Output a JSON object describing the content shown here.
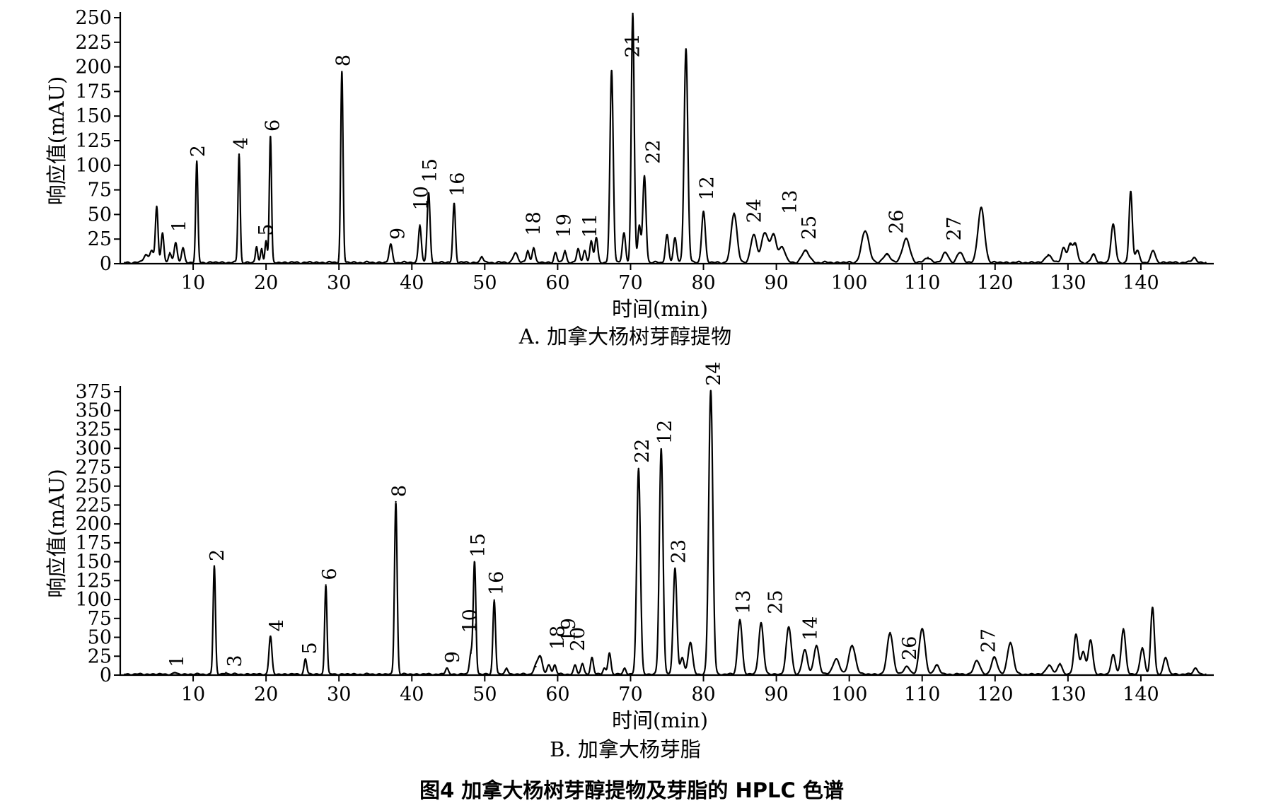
{
  "figure_caption": "图4   加拿大杨树芽醇提物及芽脂的 HPLC 色谱",
  "chart_data": [
    {
      "type": "line",
      "panel": "A",
      "caption": "A. 加拿大杨树芽醇提物",
      "xlabel": "时间(min)",
      "ylabel": "响应值(mAU)",
      "xlim": [
        0,
        150
      ],
      "ylim": [
        0,
        250
      ],
      "xticks": [
        10,
        20,
        30,
        40,
        50,
        60,
        70,
        80,
        90,
        100,
        110,
        120,
        130,
        140
      ],
      "yticks": [
        0,
        25,
        50,
        75,
        100,
        125,
        150,
        175,
        200,
        225,
        250
      ],
      "grid": false,
      "peaks": [
        {
          "t": 3.5,
          "h": 8,
          "w": 0.3
        },
        {
          "t": 4.3,
          "h": 12,
          "w": 0.25
        },
        {
          "t": 5.0,
          "h": 57,
          "w": 0.18
        },
        {
          "t": 5.8,
          "h": 30,
          "w": 0.18
        },
        {
          "t": 6.8,
          "h": 10,
          "w": 0.2
        },
        {
          "t": 7.6,
          "h": 20,
          "w": 0.2
        },
        {
          "t": 8.6,
          "h": 15,
          "w": 0.2
        },
        {
          "t": 10.5,
          "h": 102,
          "w": 0.15
        },
        {
          "t": 16.3,
          "h": 110,
          "w": 0.15
        },
        {
          "t": 18.7,
          "h": 16,
          "w": 0.15
        },
        {
          "t": 19.4,
          "h": 14,
          "w": 0.15
        },
        {
          "t": 20.0,
          "h": 22,
          "w": 0.15
        },
        {
          "t": 20.6,
          "h": 128,
          "w": 0.15
        },
        {
          "t": 30.4,
          "h": 194,
          "w": 0.16
        },
        {
          "t": 37.1,
          "h": 18,
          "w": 0.22
        },
        {
          "t": 41.1,
          "h": 38,
          "w": 0.2
        },
        {
          "t": 42.3,
          "h": 70,
          "w": 0.2
        },
        {
          "t": 45.8,
          "h": 60,
          "w": 0.18
        },
        {
          "t": 49.6,
          "h": 6,
          "w": 0.2
        },
        {
          "t": 54.2,
          "h": 10,
          "w": 0.3
        },
        {
          "t": 55.9,
          "h": 12,
          "w": 0.2
        },
        {
          "t": 56.7,
          "h": 15,
          "w": 0.2
        },
        {
          "t": 59.7,
          "h": 10,
          "w": 0.2
        },
        {
          "t": 61.0,
          "h": 12,
          "w": 0.2
        },
        {
          "t": 62.8,
          "h": 14,
          "w": 0.2
        },
        {
          "t": 63.7,
          "h": 12,
          "w": 0.2
        },
        {
          "t": 64.6,
          "h": 22,
          "w": 0.2
        },
        {
          "t": 65.3,
          "h": 25,
          "w": 0.2
        },
        {
          "t": 67.4,
          "h": 195,
          "w": 0.22
        },
        {
          "t": 69.1,
          "h": 30,
          "w": 0.22
        },
        {
          "t": 70.3,
          "h": 253,
          "w": 0.2
        },
        {
          "t": 71.2,
          "h": 38,
          "w": 0.2
        },
        {
          "t": 71.9,
          "h": 88,
          "w": 0.22
        },
        {
          "t": 75.0,
          "h": 28,
          "w": 0.22
        },
        {
          "t": 76.1,
          "h": 25,
          "w": 0.22
        },
        {
          "t": 77.6,
          "h": 217,
          "w": 0.25
        },
        {
          "t": 80.0,
          "h": 52,
          "w": 0.25
        },
        {
          "t": 84.2,
          "h": 50,
          "w": 0.4
        },
        {
          "t": 86.9,
          "h": 28,
          "w": 0.4
        },
        {
          "t": 88.4,
          "h": 30,
          "w": 0.45
        },
        {
          "t": 89.6,
          "h": 28,
          "w": 0.4
        },
        {
          "t": 90.8,
          "h": 16,
          "w": 0.4
        },
        {
          "t": 94.0,
          "h": 12,
          "w": 0.5
        },
        {
          "t": 102.2,
          "h": 32,
          "w": 0.5
        },
        {
          "t": 105.2,
          "h": 8,
          "w": 0.5
        },
        {
          "t": 107.8,
          "h": 24,
          "w": 0.5
        },
        {
          "t": 110.8,
          "h": 5,
          "w": 0.4
        },
        {
          "t": 113.2,
          "h": 10,
          "w": 0.4
        },
        {
          "t": 115.2,
          "h": 10,
          "w": 0.4
        },
        {
          "t": 118.1,
          "h": 55,
          "w": 0.45
        },
        {
          "t": 127.3,
          "h": 8,
          "w": 0.4
        },
        {
          "t": 129.4,
          "h": 15,
          "w": 0.3
        },
        {
          "t": 130.3,
          "h": 18,
          "w": 0.3
        },
        {
          "t": 131.0,
          "h": 18,
          "w": 0.3
        },
        {
          "t": 133.5,
          "h": 8,
          "w": 0.3
        },
        {
          "t": 136.2,
          "h": 38,
          "w": 0.3
        },
        {
          "t": 138.6,
          "h": 72,
          "w": 0.22
        },
        {
          "t": 139.5,
          "h": 12,
          "w": 0.3
        },
        {
          "t": 141.7,
          "h": 12,
          "w": 0.3
        },
        {
          "t": 147.3,
          "h": 5,
          "w": 0.3
        }
      ],
      "peak_labels": [
        {
          "label": "1",
          "t": 8.0,
          "y": 28
        },
        {
          "label": "2",
          "t": 10.6,
          "y": 104
        },
        {
          "label": "4",
          "t": 16.5,
          "y": 112
        },
        {
          "label": "5",
          "t": 19.9,
          "y": 24
        },
        {
          "label": "6",
          "t": 20.8,
          "y": 130
        },
        {
          "label": "8",
          "t": 30.5,
          "y": 196
        },
        {
          "label": "9",
          "t": 38.0,
          "y": 20
        },
        {
          "label": "10",
          "t": 41.2,
          "y": 50
        },
        {
          "label": "15",
          "t": 42.4,
          "y": 78
        },
        {
          "label": "16",
          "t": 46.2,
          "y": 64
        },
        {
          "label": "18",
          "t": 56.6,
          "y": 24
        },
        {
          "label": "19",
          "t": 60.8,
          "y": 22
        },
        {
          "label": "11",
          "t": 64.4,
          "y": 22
        },
        {
          "label": "21",
          "t": 70.2,
          "y": 205
        },
        {
          "label": "22",
          "t": 73.0,
          "y": 97
        },
        {
          "label": "12",
          "t": 80.4,
          "y": 60
        },
        {
          "label": "24",
          "t": 86.9,
          "y": 37
        },
        {
          "label": "13",
          "t": 91.8,
          "y": 46
        },
        {
          "label": "25",
          "t": 94.4,
          "y": 20
        },
        {
          "label": "26",
          "t": 106.4,
          "y": 26
        },
        {
          "label": "27",
          "t": 114.3,
          "y": 19
        }
      ]
    },
    {
      "type": "line",
      "panel": "B",
      "caption": "B. 加拿大杨芽脂",
      "xlabel": "时间(min)",
      "ylabel": "响应值(mAU)",
      "xlim": [
        0,
        150
      ],
      "ylim": [
        0,
        375
      ],
      "xticks": [
        10,
        20,
        30,
        40,
        50,
        60,
        70,
        80,
        90,
        100,
        110,
        120,
        130,
        140
      ],
      "yticks": [
        0,
        25,
        50,
        75,
        100,
        125,
        150,
        175,
        200,
        225,
        250,
        275,
        300,
        325,
        350,
        375
      ],
      "grid": false,
      "peaks": [
        {
          "t": 7.5,
          "h": 2,
          "w": 0.2
        },
        {
          "t": 12.9,
          "h": 143,
          "w": 0.16
        },
        {
          "t": 14.5,
          "h": 2,
          "w": 0.2
        },
        {
          "t": 20.6,
          "h": 50,
          "w": 0.2
        },
        {
          "t": 25.4,
          "h": 20,
          "w": 0.18
        },
        {
          "t": 28.2,
          "h": 118,
          "w": 0.16
        },
        {
          "t": 37.8,
          "h": 228,
          "w": 0.18
        },
        {
          "t": 44.8,
          "h": 8,
          "w": 0.2
        },
        {
          "t": 48.1,
          "h": 28,
          "w": 0.2
        },
        {
          "t": 48.6,
          "h": 148,
          "w": 0.18
        },
        {
          "t": 51.3,
          "h": 98,
          "w": 0.18
        },
        {
          "t": 53.0,
          "h": 8,
          "w": 0.2
        },
        {
          "t": 57.0,
          "h": 10,
          "w": 0.3
        },
        {
          "t": 57.6,
          "h": 23,
          "w": 0.3
        },
        {
          "t": 58.8,
          "h": 12,
          "w": 0.25
        },
        {
          "t": 59.6,
          "h": 12,
          "w": 0.2
        },
        {
          "t": 62.4,
          "h": 12,
          "w": 0.2
        },
        {
          "t": 63.4,
          "h": 14,
          "w": 0.2
        },
        {
          "t": 64.7,
          "h": 22,
          "w": 0.2
        },
        {
          "t": 66.4,
          "h": 8,
          "w": 0.2
        },
        {
          "t": 67.1,
          "h": 28,
          "w": 0.2
        },
        {
          "t": 69.2,
          "h": 8,
          "w": 0.2
        },
        {
          "t": 71.1,
          "h": 272,
          "w": 0.25
        },
        {
          "t": 74.2,
          "h": 298,
          "w": 0.25
        },
        {
          "t": 76.1,
          "h": 140,
          "w": 0.25
        },
        {
          "t": 77.1,
          "h": 22,
          "w": 0.25
        },
        {
          "t": 78.2,
          "h": 42,
          "w": 0.3
        },
        {
          "t": 81.0,
          "h": 375,
          "w": 0.28
        },
        {
          "t": 85.0,
          "h": 72,
          "w": 0.3
        },
        {
          "t": 87.9,
          "h": 68,
          "w": 0.32
        },
        {
          "t": 91.7,
          "h": 62,
          "w": 0.35
        },
        {
          "t": 93.9,
          "h": 32,
          "w": 0.35
        },
        {
          "t": 95.5,
          "h": 38,
          "w": 0.35
        },
        {
          "t": 98.2,
          "h": 20,
          "w": 0.45
        },
        {
          "t": 100.4,
          "h": 38,
          "w": 0.45
        },
        {
          "t": 105.6,
          "h": 55,
          "w": 0.4
        },
        {
          "t": 107.9,
          "h": 10,
          "w": 0.4
        },
        {
          "t": 110.0,
          "h": 60,
          "w": 0.4
        },
        {
          "t": 112.0,
          "h": 12,
          "w": 0.35
        },
        {
          "t": 117.5,
          "h": 18,
          "w": 0.4
        },
        {
          "t": 119.9,
          "h": 22,
          "w": 0.4
        },
        {
          "t": 122.1,
          "h": 42,
          "w": 0.4
        },
        {
          "t": 127.4,
          "h": 12,
          "w": 0.4
        },
        {
          "t": 128.9,
          "h": 14,
          "w": 0.3
        },
        {
          "t": 131.1,
          "h": 52,
          "w": 0.3
        },
        {
          "t": 132.1,
          "h": 30,
          "w": 0.3
        },
        {
          "t": 133.1,
          "h": 45,
          "w": 0.3
        },
        {
          "t": 136.2,
          "h": 25,
          "w": 0.3
        },
        {
          "t": 137.6,
          "h": 60,
          "w": 0.3
        },
        {
          "t": 140.2,
          "h": 35,
          "w": 0.3
        },
        {
          "t": 141.6,
          "h": 88,
          "w": 0.25
        },
        {
          "t": 143.4,
          "h": 22,
          "w": 0.3
        },
        {
          "t": 147.5,
          "h": 8,
          "w": 0.3
        }
      ],
      "peak_labels": [
        {
          "label": "1",
          "t": 7.7,
          "y": 5
        },
        {
          "label": "2",
          "t": 13.2,
          "y": 145
        },
        {
          "label": "3",
          "t": 15.6,
          "y": 5
        },
        {
          "label": "4",
          "t": 21.4,
          "y": 52
        },
        {
          "label": "5",
          "t": 25.9,
          "y": 22
        },
        {
          "label": "6",
          "t": 28.6,
          "y": 120
        },
        {
          "label": "8",
          "t": 38.2,
          "y": 230
        },
        {
          "label": "9",
          "t": 45.5,
          "y": 10
        },
        {
          "label": "10",
          "t": 47.9,
          "y": 50
        },
        {
          "label": "15",
          "t": 49.0,
          "y": 150
        },
        {
          "label": "16",
          "t": 51.5,
          "y": 100
        },
        {
          "label": "18",
          "t": 59.9,
          "y": 28
        },
        {
          "label": "19",
          "t": 61.4,
          "y": 38
        },
        {
          "label": "20",
          "t": 62.7,
          "y": 26
        },
        {
          "label": "22",
          "t": 71.5,
          "y": 275
        },
        {
          "label": "12",
          "t": 74.6,
          "y": 300
        },
        {
          "label": "23",
          "t": 76.5,
          "y": 142
        },
        {
          "label": "24",
          "t": 81.3,
          "y": 377
        },
        {
          "label": "13",
          "t": 85.4,
          "y": 75
        },
        {
          "label": "25",
          "t": 89.8,
          "y": 75
        },
        {
          "label": "14",
          "t": 94.6,
          "y": 40
        },
        {
          "label": "26",
          "t": 108.2,
          "y": 14
        },
        {
          "label": "27",
          "t": 119.0,
          "y": 24
        }
      ]
    }
  ]
}
